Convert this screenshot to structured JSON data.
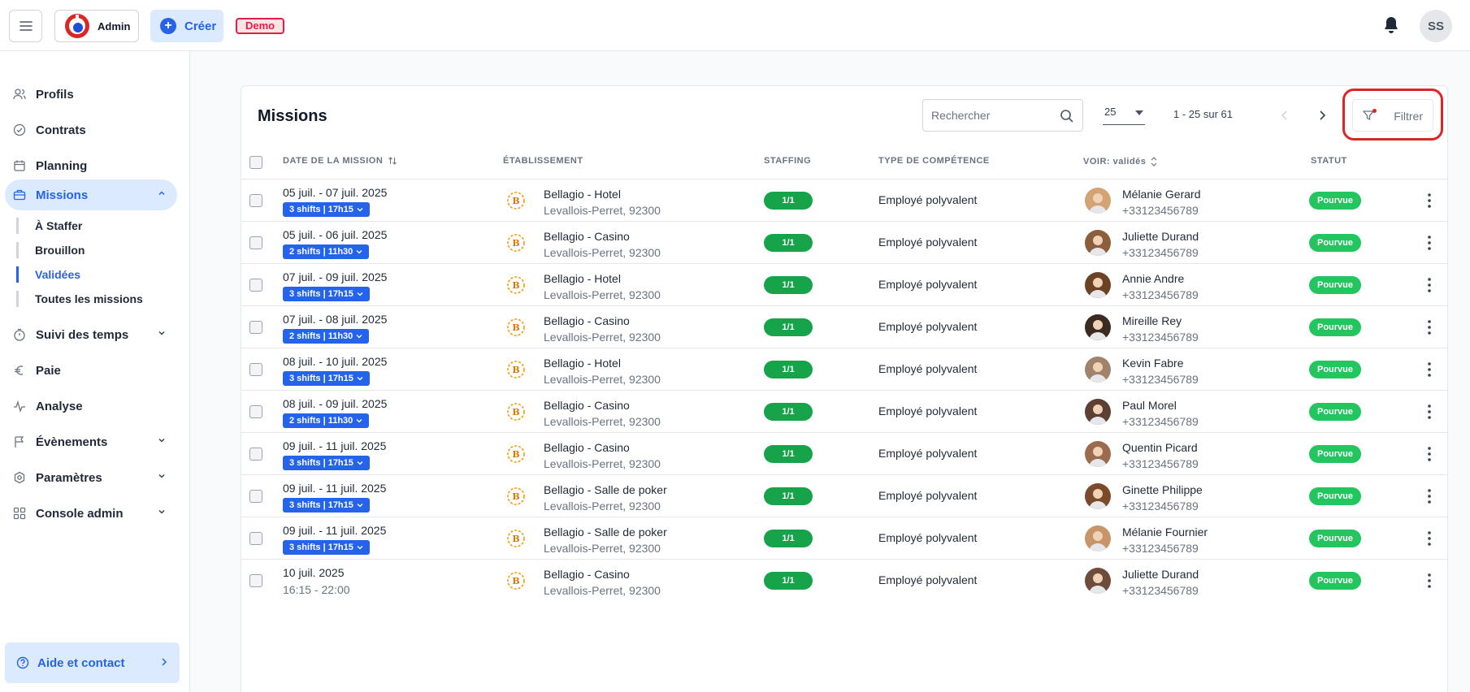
{
  "topbar": {
    "brand_label": "Admin",
    "create_label": "Créer",
    "demo_label": "Demo",
    "user_initials": "SS"
  },
  "sidebar": {
    "items": [
      {
        "label": "Profils",
        "icon": "users-icon"
      },
      {
        "label": "Contrats",
        "icon": "check-circle-icon"
      },
      {
        "label": "Planning",
        "icon": "calendar-icon"
      },
      {
        "label": "Missions",
        "icon": "briefcase-icon"
      },
      {
        "label": "Suivi des temps",
        "icon": "timer-icon"
      },
      {
        "label": "Paie",
        "icon": "euro-icon"
      },
      {
        "label": "Analyse",
        "icon": "activity-icon"
      },
      {
        "label": "Évènements",
        "icon": "flag-icon"
      },
      {
        "label": "Paramètres",
        "icon": "settings-icon"
      },
      {
        "label": "Console admin",
        "icon": "grid-icon"
      }
    ],
    "subitems": [
      "À Staffer",
      "Brouillon",
      "Validées",
      "Toutes les missions"
    ],
    "help_label": "Aide et contact"
  },
  "main": {
    "title": "Missions",
    "search_placeholder": "Rechercher",
    "per_page": "25",
    "range": "1 - 25 sur 61",
    "filter_label": "Filtrer",
    "columns": [
      "DATE DE LA MISSION",
      "ÉTABLISSEMENT",
      "STAFFING",
      "TYPE DE COMPÉTENCE",
      "VOIR: validés",
      "STATUT"
    ]
  },
  "rows": [
    {
      "date": "05 juil. - 07 juil. 2025",
      "shift": "3 shifts | 17h15",
      "est": "Bellagio - Hotel",
      "city": "Levallois-Perret, 92300",
      "staffing": "1/1",
      "skill": "Employé polyvalent",
      "name": "Mélanie Gerard",
      "phone": "+33123456789",
      "status": "Pourvue"
    },
    {
      "date": "05 juil. - 06 juil. 2025",
      "shift": "2 shifts | 11h30",
      "est": "Bellagio - Casino",
      "city": "Levallois-Perret, 92300",
      "staffing": "1/1",
      "skill": "Employé polyvalent",
      "name": "Juliette Durand",
      "phone": "+33123456789",
      "status": "Pourvue"
    },
    {
      "date": "07 juil. - 09 juil. 2025",
      "shift": "3 shifts | 17h15",
      "est": "Bellagio - Hotel",
      "city": "Levallois-Perret, 92300",
      "staffing": "1/1",
      "skill": "Employé polyvalent",
      "name": "Annie Andre",
      "phone": "+33123456789",
      "status": "Pourvue"
    },
    {
      "date": "07 juil. - 08 juil. 2025",
      "shift": "2 shifts | 11h30",
      "est": "Bellagio - Casino",
      "city": "Levallois-Perret, 92300",
      "staffing": "1/1",
      "skill": "Employé polyvalent",
      "name": "Mireille Rey",
      "phone": "+33123456789",
      "status": "Pourvue"
    },
    {
      "date": "08 juil. - 10 juil. 2025",
      "shift": "3 shifts | 17h15",
      "est": "Bellagio - Hotel",
      "city": "Levallois-Perret, 92300",
      "staffing": "1/1",
      "skill": "Employé polyvalent",
      "name": "Kevin Fabre",
      "phone": "+33123456789",
      "status": "Pourvue"
    },
    {
      "date": "08 juil. - 09 juil. 2025",
      "shift": "2 shifts | 11h30",
      "est": "Bellagio - Casino",
      "city": "Levallois-Perret, 92300",
      "staffing": "1/1",
      "skill": "Employé polyvalent",
      "name": "Paul Morel",
      "phone": "+33123456789",
      "status": "Pourvue"
    },
    {
      "date": "09 juil. - 11 juil. 2025",
      "shift": "3 shifts | 17h15",
      "est": "Bellagio - Casino",
      "city": "Levallois-Perret, 92300",
      "staffing": "1/1",
      "skill": "Employé polyvalent",
      "name": "Quentin Picard",
      "phone": "+33123456789",
      "status": "Pourvue"
    },
    {
      "date": "09 juil. - 11 juil. 2025",
      "shift": "3 shifts | 17h15",
      "est": "Bellagio - Salle de poker",
      "city": "Levallois-Perret, 92300",
      "staffing": "1/1",
      "skill": "Employé polyvalent",
      "name": "Ginette Philippe",
      "phone": "+33123456789",
      "status": "Pourvue"
    },
    {
      "date": "09 juil. - 11 juil. 2025",
      "shift": "3 shifts | 17h15",
      "est": "Bellagio - Salle de poker",
      "city": "Levallois-Perret, 92300",
      "staffing": "1/1",
      "skill": "Employé polyvalent",
      "name": "Mélanie Fournier",
      "phone": "+33123456789",
      "status": "Pourvue"
    },
    {
      "date": "10 juil. 2025",
      "time": "16:15 - 22:00",
      "est": "Bellagio - Casino",
      "city": "Levallois-Perret, 92300",
      "staffing": "1/1",
      "skill": "Employé polyvalent",
      "name": "Juliette Durand",
      "phone": "+33123456789",
      "status": "Pourvue"
    }
  ],
  "colors": {
    "accent": "#2563eb",
    "success": "#22c55e",
    "highlight": "#dc2626"
  }
}
